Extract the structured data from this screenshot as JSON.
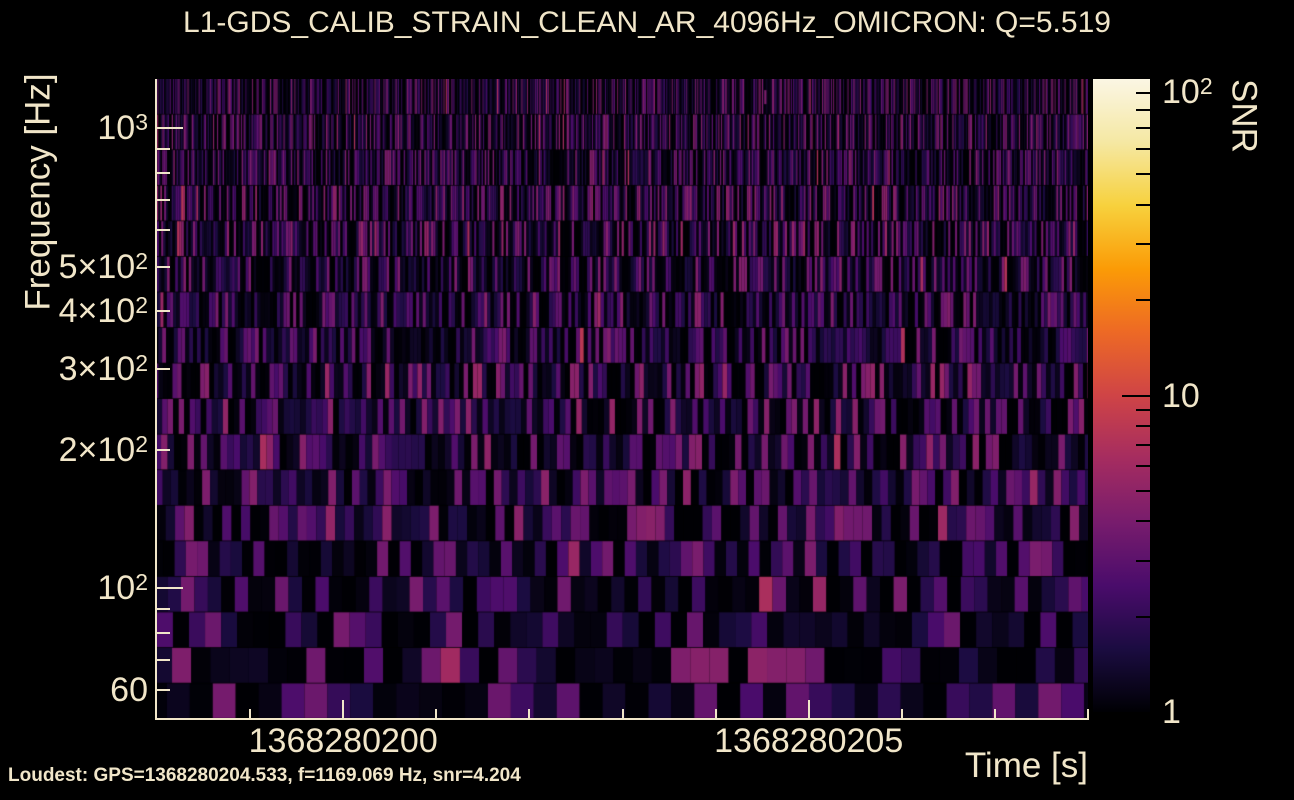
{
  "page": {
    "background": "#000000",
    "text_color": "#f1e6c9"
  },
  "title": "L1-GDS_CALIB_STRAIN_CLEAN_AR_4096Hz_OMICRON: Q=5.519",
  "footer": {
    "loudest_text": "Loudest: GPS=1368280204.533, f=1169.069 Hz, snr=4.204"
  },
  "axes": {
    "x": {
      "label": "Time [s]"
    },
    "y": {
      "label": "Frequency [Hz]"
    },
    "colorbar": {
      "label": "SNR"
    }
  },
  "chart_data": {
    "type": "heatmap",
    "title": "L1-GDS_CALIB_STRAIN_CLEAN_AR_4096Hz_OMICRON: Q=5.519",
    "xlabel": "Time [s]",
    "ylabel": "Frequency [Hz]",
    "zlabel": "SNR",
    "x_scale": "linear",
    "y_scale": "log",
    "z_scale": "log",
    "x_range_gps": [
      1368280198,
      1368280208
    ],
    "y_range_hz": [
      52,
      1280
    ],
    "z_range_snr": [
      1,
      100
    ],
    "x_tick_labels": [
      {
        "value": 1368280200,
        "label": "1368280200"
      },
      {
        "value": 1368280205,
        "label": "1368280205"
      }
    ],
    "x_minor_ticks": [
      1368280199,
      1368280201,
      1368280202,
      1368280203,
      1368280204,
      1368280206,
      1368280207,
      1368280208
    ],
    "y_tick_labels": [
      {
        "value": 1000,
        "base": "10",
        "exp": "3"
      },
      {
        "value": 500,
        "base": "5×10",
        "exp": "2"
      },
      {
        "value": 400,
        "base": "4×10",
        "exp": "2"
      },
      {
        "value": 300,
        "base": "3×10",
        "exp": "2"
      },
      {
        "value": 200,
        "base": "2×10",
        "exp": "2"
      },
      {
        "value": 100,
        "base": "10",
        "exp": "2"
      },
      {
        "value": 60,
        "base": "60",
        "exp": ""
      }
    ],
    "y_major_ticks": [
      100,
      1000
    ],
    "y_minor_ticks": [
      60,
      70,
      80,
      90,
      200,
      300,
      400,
      500,
      600,
      700,
      800,
      900
    ],
    "colorbar": {
      "tick_labels": [
        {
          "value": 100,
          "base": "10",
          "exp": "2"
        },
        {
          "value": 10,
          "base": "10",
          "exp": ""
        },
        {
          "value": 1,
          "base": "1",
          "exp": ""
        }
      ],
      "major_ticks": [
        10
      ],
      "minor_ticks": [
        2,
        3,
        4,
        5,
        6,
        7,
        8,
        9,
        20,
        30,
        40,
        50,
        60,
        70,
        80,
        90
      ]
    },
    "colormap": {
      "name": "inferno",
      "stops": [
        [
          0.0,
          "#000004"
        ],
        [
          0.1,
          "#1b0c41"
        ],
        [
          0.2,
          "#4a0c6b"
        ],
        [
          0.3,
          "#781c6d"
        ],
        [
          0.4,
          "#a52c60"
        ],
        [
          0.5,
          "#cf4446"
        ],
        [
          0.6,
          "#ed6925"
        ],
        [
          0.7,
          "#fb9b06"
        ],
        [
          0.8,
          "#f7d13d"
        ],
        [
          0.9,
          "#f5e8a3"
        ],
        [
          1.0,
          "#fbf6e4"
        ]
      ]
    },
    "q_value": 5.519,
    "loudest": {
      "gps": 1368280204.533,
      "frequency_hz": 1169.069,
      "snr": 4.204
    },
    "content_summary": "Omicron Q-scan background noise tiles; SNR values mostly between 1 and 4 (dark purple vertical stripes on black), no loud feature; loudest tile snr=4.204 at 1169.069 Hz",
    "tiling": {
      "rows": 18,
      "seed": 11,
      "tile_duration_scale": 14
    }
  }
}
